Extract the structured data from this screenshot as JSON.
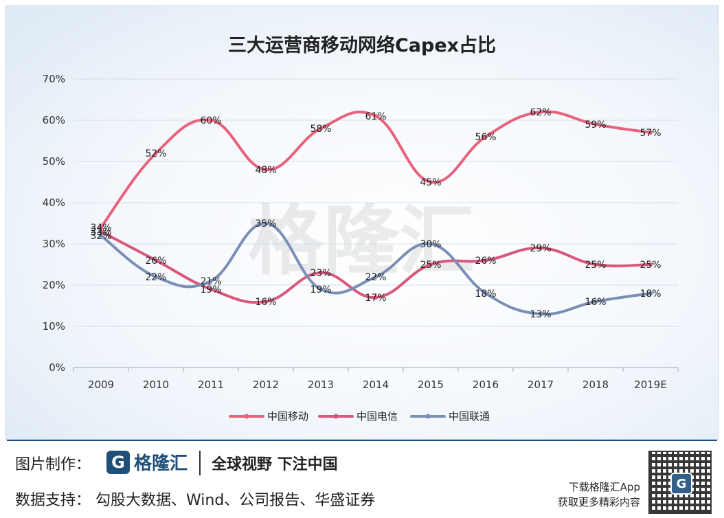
{
  "chart_data": {
    "type": "line",
    "title": "三大运营商移动网络Capex占比",
    "categories": [
      "2009",
      "2010",
      "2011",
      "2012",
      "2013",
      "2014",
      "2015",
      "2016",
      "2017",
      "2018",
      "2019E"
    ],
    "y_ticks": [
      "0%",
      "10%",
      "20%",
      "30%",
      "40%",
      "50%",
      "60%",
      "70%"
    ],
    "ylim": [
      0,
      70
    ],
    "grid": true,
    "legend_position": "bottom",
    "series": [
      {
        "name": "中国移动",
        "color": "#e8627c",
        "values": [
          34,
          52,
          60,
          48,
          58,
          61,
          45,
          56,
          62,
          59,
          57
        ],
        "labels": [
          "34%",
          "52%",
          "60%",
          "48%",
          "58%",
          "61%",
          "45%",
          "56%",
          "62%",
          "59%",
          "57%"
        ]
      },
      {
        "name": "中国电信",
        "color": "#d9577a",
        "values": [
          33,
          26,
          19,
          16,
          23,
          17,
          25,
          26,
          29,
          25,
          25
        ],
        "labels": [
          "33%",
          "26%",
          "19%",
          "16%",
          "23%",
          "17%",
          "25%",
          "26%",
          "29%",
          "25%",
          "25%"
        ]
      },
      {
        "name": "中国联通",
        "color": "#7b8fb6",
        "values": [
          32,
          22,
          21,
          35,
          19,
          22,
          30,
          18,
          13,
          16,
          18
        ],
        "labels": [
          "32%",
          "22%",
          "21%",
          "35%",
          "19%",
          "22%",
          "30%",
          "18%",
          "13%",
          "16%",
          "18%"
        ]
      }
    ]
  },
  "watermark": {
    "text": "格隆汇",
    "url": "www.gelonghui.com"
  },
  "footer": {
    "credit_label": "图片制作：",
    "brand_logo": "G",
    "brand_name": "格隆汇",
    "brand_url": "www.gelonghui.com",
    "slogan": "全球视野 下注中国",
    "source": "数据支持：   勾股大数据、Wind、公司报告、华盛证券",
    "download_line1": "下载格隆汇App",
    "download_line2": "获取更多精彩内容",
    "qr_icon": "qr-code-icon"
  }
}
